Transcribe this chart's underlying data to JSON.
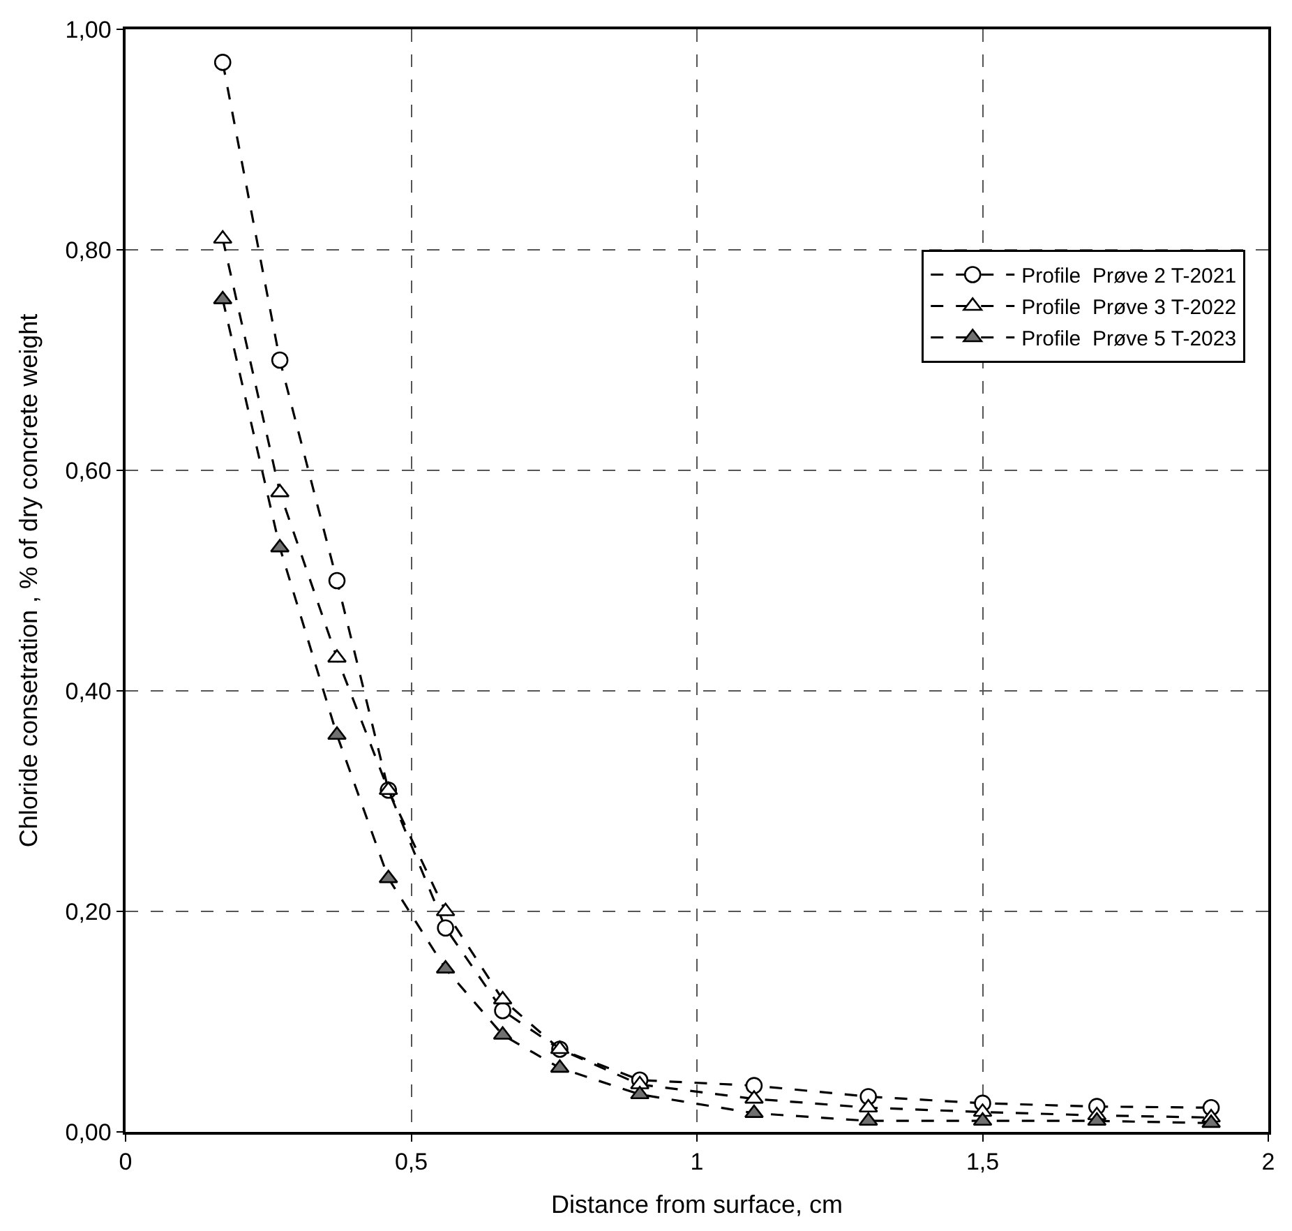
{
  "chart_data": {
    "type": "line",
    "xlabel": "Distance from surface, cm",
    "ylabel": "Chloride consetration , % of dry concrete weight",
    "x": [
      0.17,
      0.27,
      0.37,
      0.46,
      0.56,
      0.66,
      0.76,
      0.9,
      1.1,
      1.3,
      1.5,
      1.7,
      1.9
    ],
    "series": [
      {
        "name": "Profile  Prøve 2 T-2021",
        "color": "#ffffff",
        "marker": "circle",
        "values": [
          0.97,
          0.7,
          0.5,
          0.31,
          0.185,
          0.11,
          0.075,
          0.047,
          0.042,
          0.032,
          0.026,
          0.023,
          0.022
        ]
      },
      {
        "name": "Profile  Prøve 3 T-2022",
        "color": "#ffffff",
        "marker": "triangle",
        "values": [
          0.81,
          0.58,
          0.43,
          0.31,
          0.2,
          0.12,
          0.075,
          0.043,
          0.03,
          0.022,
          0.018,
          0.015,
          0.013
        ]
      },
      {
        "name": "Profile  Prøve 5 T-2023",
        "color": "#707070",
        "marker": "triangle",
        "values": [
          0.755,
          0.53,
          0.36,
          0.23,
          0.148,
          0.088,
          0.058,
          0.034,
          0.017,
          0.01,
          0.01,
          0.01,
          0.008
        ]
      }
    ],
    "xlim": [
      0,
      2
    ],
    "ylim": [
      0,
      1
    ],
    "xticks": [
      0,
      {
        "value": 0.5,
        "label": "0,5"
      },
      1,
      {
        "value": 1.5,
        "label": "1,5"
      },
      2
    ],
    "yticks": [
      {
        "value": 0,
        "label": "0,00"
      },
      {
        "value": 0.2,
        "label": "0,20"
      },
      {
        "value": 0.4,
        "label": "0,40"
      },
      {
        "value": 0.6,
        "label": "0,60"
      },
      {
        "value": 0.8,
        "label": "0,80"
      },
      {
        "value": 1,
        "label": "1,00"
      }
    ],
    "grid": true,
    "legend": "top right",
    "line_style": "dashed"
  }
}
